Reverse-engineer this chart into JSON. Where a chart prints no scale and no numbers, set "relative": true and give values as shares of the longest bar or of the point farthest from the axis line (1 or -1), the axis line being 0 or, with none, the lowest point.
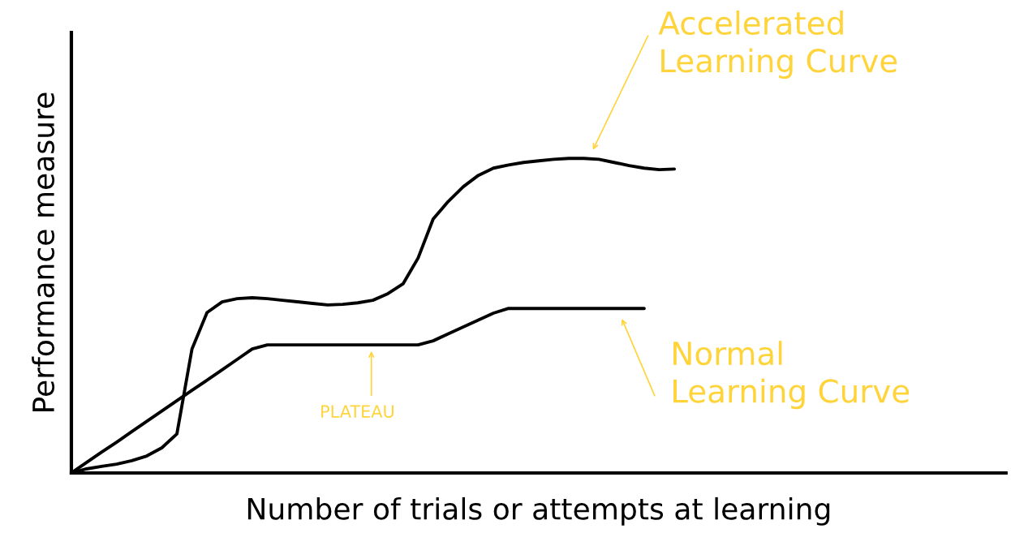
{
  "chart_data": {
    "type": "line",
    "relative": true,
    "xlabel": "Number of trials or attempts at learning",
    "ylabel": "Performance measure",
    "categories": [
      null,
      null,
      null,
      null,
      null,
      null,
      null,
      null,
      null,
      null,
      null,
      null,
      null,
      null,
      null,
      null,
      null,
      null,
      null,
      null,
      null,
      null,
      null,
      null,
      null,
      null,
      null,
      null,
      null,
      null,
      null,
      null,
      null,
      null,
      null,
      null,
      null,
      null,
      null,
      null,
      null
    ],
    "series": [
      {
        "color": "#000000",
        "values": [
          0,
          0.013,
          0.021,
          0.028,
          0.039,
          0.054,
          0.08,
          0.124,
          0.394,
          0.51,
          0.544,
          0.554,
          0.557,
          0.554,
          0.549,
          0.544,
          0.539,
          0.534,
          0.536,
          0.541,
          0.549,
          0.57,
          0.601,
          0.683,
          0.807,
          0.863,
          0.91,
          0.946,
          0.969,
          0.979,
          0.987,
          0.992,
          0.997,
          1,
          1,
          0.997,
          0.987,
          0.977,
          0.969,
          0.964,
          0.966
        ]
      },
      {
        "color": "#000000",
        "values": [
          0,
          0.033,
          0.066,
          0.098,
          0.131,
          0.164,
          0.197,
          0.23,
          0.263,
          0.295,
          0.328,
          0.361,
          0.394,
          0.407,
          0.407,
          0.407,
          0.407,
          0.407,
          0.407,
          0.407,
          0.407,
          0.407,
          0.407,
          0.407,
          0.42,
          0.442,
          0.464,
          0.486,
          0.508,
          0.523,
          0.523,
          0.523,
          0.523,
          0.523,
          0.523,
          0.523,
          0.523,
          0.523,
          0.523,
          null,
          null
        ]
      }
    ],
    "annotations": [
      "Accelerated\nLearning Curve",
      "Normal\nLearning Curve",
      "PLATEAU"
    ],
    "grid": false,
    "legend": false,
    "marker": "none",
    "line_style": "solid"
  }
}
